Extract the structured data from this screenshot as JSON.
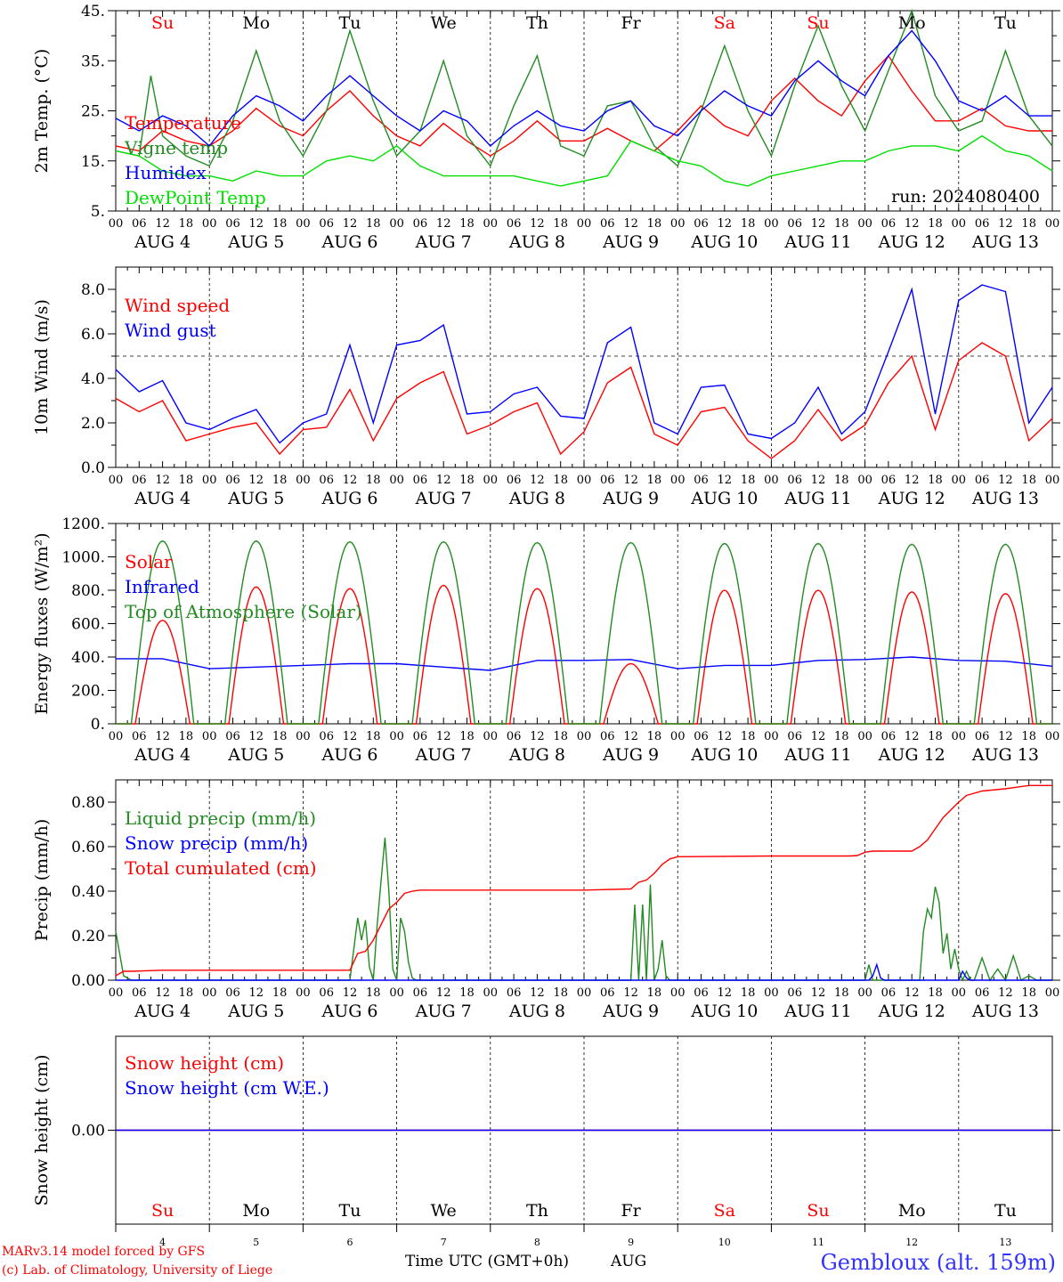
{
  "chart_data": [
    {
      "type": "line",
      "ylabel": "2m Temp. (°C)",
      "ylim": [
        5,
        45
      ],
      "yticks": [
        "5.",
        "15.",
        "25.",
        "35.",
        "45."
      ],
      "yticks_values": [
        5,
        15,
        25,
        35,
        45
      ],
      "annotation": "run: 2024080400",
      "legend": [
        "Temperature",
        "Vigne temp",
        "Humidex",
        "DewPoint Temp"
      ],
      "series": [
        {
          "name": "Temperature",
          "color": "#ff0000",
          "x": [
            0,
            6,
            12,
            18,
            24,
            30,
            36,
            42,
            48,
            54,
            60,
            66,
            72,
            78,
            84,
            90,
            96,
            102,
            108,
            114,
            120,
            126,
            132,
            138,
            144,
            150,
            156,
            162,
            168,
            174,
            180,
            186,
            192,
            198,
            204,
            210,
            216,
            222,
            228,
            234,
            240
          ],
          "y": [
            18,
            17,
            21,
            19,
            18,
            21,
            25.5,
            22,
            20,
            25,
            29,
            24,
            20,
            18,
            22.5,
            19,
            16,
            19,
            23,
            19,
            19,
            21.5,
            19,
            17,
            21,
            26,
            22,
            20,
            27,
            31.5,
            27,
            24,
            31,
            36,
            29,
            23,
            23,
            25.5,
            22,
            21,
            21
          ]
        },
        {
          "name": "Vigne temp",
          "color": "#228b22",
          "x": [
            0,
            6,
            9,
            12,
            18,
            24,
            30,
            36,
            42,
            48,
            54,
            60,
            66,
            72,
            78,
            84,
            90,
            96,
            102,
            108,
            114,
            120,
            126,
            132,
            138,
            144,
            150,
            156,
            162,
            168,
            174,
            180,
            186,
            192,
            198,
            204,
            210,
            216,
            222,
            228,
            234,
            240
          ],
          "y": [
            17,
            16,
            32,
            20,
            16,
            14,
            23,
            37,
            23,
            16,
            25,
            41,
            27,
            16,
            21,
            35,
            20,
            14,
            26,
            36,
            18,
            16,
            26,
            27,
            18,
            14,
            25,
            38,
            25,
            16,
            30,
            42,
            30,
            21,
            33,
            45,
            28,
            21,
            23,
            37,
            24,
            18
          ]
        },
        {
          "name": "Humidex",
          "color": "#0000ff",
          "x": [
            0,
            6,
            12,
            18,
            24,
            30,
            36,
            42,
            48,
            54,
            60,
            66,
            72,
            78,
            84,
            90,
            96,
            102,
            108,
            114,
            120,
            126,
            132,
            138,
            144,
            150,
            156,
            162,
            168,
            174,
            180,
            186,
            192,
            198,
            204,
            210,
            216,
            222,
            228,
            234,
            240
          ],
          "y": [
            23.5,
            21,
            24,
            22,
            18,
            24,
            28,
            26,
            23,
            28,
            32,
            28,
            24,
            21,
            25,
            23,
            18,
            22,
            25,
            22,
            21,
            25,
            27,
            22,
            20,
            25,
            29,
            26,
            24,
            31,
            35,
            31,
            28,
            36,
            41,
            35,
            27,
            25,
            28,
            24,
            24
          ]
        },
        {
          "name": "DewPoint Temp",
          "color": "#00e000",
          "x": [
            0,
            6,
            12,
            18,
            24,
            30,
            36,
            42,
            48,
            54,
            60,
            66,
            72,
            78,
            84,
            90,
            96,
            102,
            108,
            114,
            120,
            126,
            132,
            138,
            144,
            150,
            156,
            162,
            168,
            174,
            180,
            186,
            192,
            198,
            204,
            210,
            216,
            222,
            228,
            234,
            240
          ],
          "y": [
            17,
            16,
            13,
            12,
            12,
            11,
            13,
            12,
            12,
            15,
            16,
            15,
            18,
            14,
            12,
            12,
            12,
            12,
            11,
            10,
            11,
            12,
            19,
            17,
            15,
            14,
            11,
            10,
            12,
            13,
            14,
            15,
            15,
            17,
            18,
            18,
            17,
            20,
            17,
            16,
            13
          ]
        }
      ]
    },
    {
      "type": "line",
      "ylabel": "10m Wind (m/s)",
      "ylim": [
        0,
        9
      ],
      "yticks": [
        "0.0",
        "2.0",
        "4.0",
        "6.0",
        "8.0"
      ],
      "yticks_values": [
        0,
        2,
        4,
        6,
        8
      ],
      "reference_line": 5,
      "legend": [
        "Wind speed",
        "Wind gust"
      ],
      "series": [
        {
          "name": "Wind speed",
          "color": "#ff0000",
          "x": [
            0,
            6,
            12,
            18,
            24,
            30,
            36,
            42,
            48,
            54,
            60,
            66,
            72,
            78,
            84,
            90,
            96,
            102,
            108,
            114,
            120,
            126,
            132,
            138,
            144,
            150,
            156,
            162,
            168,
            174,
            180,
            186,
            192,
            198,
            204,
            210,
            216,
            222,
            228,
            234,
            240
          ],
          "y": [
            3.1,
            2.5,
            3.0,
            1.2,
            1.5,
            1.8,
            2.0,
            0.6,
            1.7,
            1.8,
            3.5,
            1.2,
            3.1,
            3.8,
            4.3,
            1.5,
            1.9,
            2.5,
            2.9,
            0.6,
            1.6,
            3.8,
            4.5,
            1.5,
            1.0,
            2.5,
            2.7,
            1.2,
            0.4,
            1.2,
            2.6,
            1.2,
            1.9,
            3.8,
            5.0,
            1.7,
            4.8,
            5.6,
            5.0,
            1.2,
            2.2
          ]
        },
        {
          "name": "Wind gust",
          "color": "#0000ff",
          "x": [
            0,
            6,
            12,
            18,
            24,
            30,
            36,
            42,
            48,
            54,
            60,
            66,
            72,
            78,
            84,
            90,
            96,
            102,
            108,
            114,
            120,
            126,
            132,
            138,
            144,
            150,
            156,
            162,
            168,
            174,
            180,
            186,
            192,
            198,
            204,
            210,
            216,
            222,
            228,
            234,
            240
          ],
          "y": [
            4.4,
            3.4,
            3.9,
            2.0,
            1.7,
            2.2,
            2.6,
            1.1,
            2.0,
            2.4,
            5.5,
            2.0,
            5.5,
            5.7,
            6.4,
            2.4,
            2.5,
            3.3,
            3.6,
            2.3,
            2.2,
            5.6,
            6.3,
            2.0,
            1.5,
            3.6,
            3.7,
            1.5,
            1.3,
            2.0,
            3.6,
            1.5,
            2.5,
            5.2,
            8.0,
            2.4,
            7.5,
            8.2,
            7.9,
            2.0,
            3.6
          ]
        }
      ]
    },
    {
      "type": "line",
      "ylabel": "Energy fluxes (W/m²)",
      "ylim": [
        0,
        1200
      ],
      "yticks": [
        "0.",
        "200.",
        "400.",
        "600.",
        "800.",
        "1000.",
        "1200."
      ],
      "yticks_values": [
        0,
        200,
        400,
        600,
        800,
        1000,
        1200
      ],
      "legend": [
        "Solar",
        "Infrared",
        "Top of Atmosphere (Solar)"
      ],
      "series": [
        {
          "name": "Solar",
          "peak_per_day": [
            620,
            820,
            810,
            830,
            810,
            360,
            800,
            800,
            790,
            780
          ],
          "color": "#ff0000"
        },
        {
          "name": "Infrared",
          "color": "#0000ff",
          "x": [
            0,
            12,
            24,
            36,
            48,
            60,
            72,
            84,
            96,
            108,
            120,
            132,
            144,
            156,
            168,
            180,
            192,
            204,
            216,
            228,
            240
          ],
          "y": [
            390,
            390,
            330,
            340,
            350,
            360,
            360,
            340,
            320,
            380,
            380,
            385,
            330,
            350,
            350,
            380,
            385,
            400,
            380,
            375,
            345
          ]
        },
        {
          "name": "Top of Atmosphere (Solar)",
          "peak_per_day": [
            1095,
            1095,
            1090,
            1090,
            1085,
            1085,
            1080,
            1080,
            1075,
            1075
          ],
          "color": "#228b22"
        }
      ]
    },
    {
      "type": "line",
      "ylabel": "Precip (mm/h)",
      "ylim": [
        0,
        0.9
      ],
      "yticks": [
        "0.00",
        "0.20",
        "0.40",
        "0.60",
        "0.80"
      ],
      "yticks_values": [
        0,
        0.2,
        0.4,
        0.6,
        0.8
      ],
      "legend": [
        "Liquid precip (mm/h)",
        "Snow precip (mm/h)",
        "Total cumulated (cm)"
      ],
      "series": [
        {
          "name": "Liquid precip (mm/h)",
          "color": "#228b22",
          "x": [
            0,
            1,
            2,
            3,
            4,
            60,
            62,
            63,
            64,
            65,
            66,
            67,
            68,
            69,
            70,
            71,
            72,
            73,
            74,
            75,
            76,
            77,
            78,
            132,
            133,
            134,
            135,
            136,
            137,
            138,
            139,
            140,
            141,
            142,
            143,
            144,
            145,
            192,
            193,
            194,
            206,
            207,
            208,
            209,
            210,
            211,
            212,
            213,
            214,
            215,
            216,
            217,
            218,
            219,
            220,
            222,
            224,
            226,
            228,
            230,
            232,
            234,
            236,
            240
          ],
          "y": [
            0.22,
            0.12,
            0.02,
            0.01,
            0.0,
            0.0,
            0.28,
            0.18,
            0.27,
            0.06,
            0.0,
            0.25,
            0.45,
            0.64,
            0.4,
            0.05,
            0.0,
            0.28,
            0.22,
            0.08,
            0.01,
            0.0,
            0.0,
            0.0,
            0.34,
            0.0,
            0.34,
            0.0,
            0.43,
            0.0,
            0.05,
            0.18,
            0.02,
            0.0,
            0.0,
            0.0,
            0.0,
            0.0,
            0.07,
            0.0,
            0.0,
            0.22,
            0.32,
            0.28,
            0.42,
            0.35,
            0.12,
            0.21,
            0.05,
            0.14,
            0.05,
            0.0,
            0.04,
            0.0,
            0.0,
            0.1,
            0.0,
            0.05,
            0.0,
            0.11,
            0.0,
            0.02,
            0.0,
            0.0
          ]
        },
        {
          "name": "Snow precip (mm/h)",
          "color": "#0000ff",
          "x": [
            0,
            193,
            194,
            195,
            196,
            197,
            216,
            217,
            218,
            219,
            240
          ],
          "y": [
            0,
            0,
            0.02,
            0.07,
            0.01,
            0,
            0,
            0.04,
            0.01,
            0,
            0
          ]
        },
        {
          "name": "Total cumulated (cm)",
          "color": "#ff0000",
          "x": [
            0,
            2,
            4,
            12,
            24,
            60,
            62,
            64,
            66,
            68,
            70,
            72,
            74,
            76,
            78,
            84,
            96,
            120,
            132,
            134,
            136,
            138,
            140,
            142,
            144,
            168,
            180,
            188,
            190,
            192,
            194,
            196,
            198,
            204,
            206,
            208,
            210,
            212,
            216,
            218,
            222,
            228,
            234,
            240
          ],
          "y": [
            0.02,
            0.04,
            0.04,
            0.045,
            0.045,
            0.045,
            0.12,
            0.13,
            0.18,
            0.25,
            0.32,
            0.35,
            0.39,
            0.4,
            0.405,
            0.405,
            0.405,
            0.405,
            0.41,
            0.44,
            0.45,
            0.48,
            0.52,
            0.545,
            0.555,
            0.558,
            0.558,
            0.558,
            0.56,
            0.575,
            0.58,
            0.58,
            0.58,
            0.58,
            0.6,
            0.63,
            0.68,
            0.73,
            0.8,
            0.83,
            0.85,
            0.86,
            0.875,
            0.875
          ]
        }
      ]
    },
    {
      "type": "line",
      "ylabel": "Snow height (cm)",
      "ylim": [
        -1,
        1
      ],
      "yticks": [
        "0.00"
      ],
      "yticks_values": [
        0
      ],
      "legend": [
        "Snow height (cm)",
        "Snow height (cm W.E.)"
      ],
      "series": [
        {
          "name": "Snow height (cm)",
          "color": "#ff0000",
          "x": [
            0,
            240
          ],
          "y": [
            0,
            0
          ]
        },
        {
          "name": "Snow height (cm W.E.)",
          "color": "#0000ff",
          "x": [
            0,
            240
          ],
          "y": [
            0,
            0
          ]
        }
      ]
    }
  ],
  "x_axis": {
    "hour_labels": [
      "00",
      "06",
      "12",
      "18"
    ],
    "final_hour_label": "00",
    "day_labels": [
      "AUG 4",
      "AUG 5",
      "AUG 6",
      "AUG 7",
      "AUG 8",
      "AUG 9",
      "AUG 10",
      "AUG 11",
      "AUG 12",
      "AUG 13"
    ],
    "weekdays": [
      "Su",
      "Mo",
      "Tu",
      "We",
      "Th",
      "Fr",
      "Sa",
      "Su",
      "Mo",
      "Tu"
    ],
    "weekday_colors": [
      "#ff0000",
      "#000000",
      "#000000",
      "#000000",
      "#000000",
      "#000000",
      "#ff0000",
      "#ff0000",
      "#000000",
      "#000000"
    ],
    "bottom_days": [
      "4",
      "5",
      "6",
      "7",
      "8",
      "9",
      "10",
      "11",
      "12",
      "13"
    ],
    "title": "Time UTC (GMT+0h)",
    "month": "AUG"
  },
  "footer": {
    "credit_line1": "MARv3.14 model forced by GFS",
    "credit_line2": "(c) Lab. of Climatology, University of Liege",
    "station": "Gembloux (alt. 159m)"
  }
}
